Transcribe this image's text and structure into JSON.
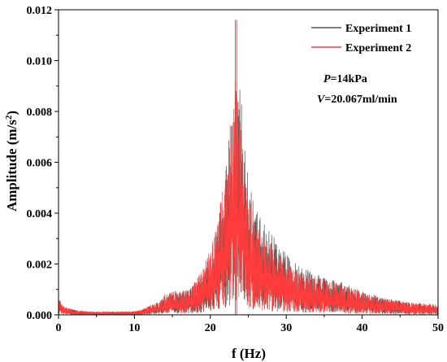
{
  "chart_data": {
    "type": "line",
    "xlabel": "f (Hz)",
    "ylabel": "Amplitude (m/s",
    "ylabel_sup": "2",
    "ylabel_end": ")",
    "xlim": [
      0,
      50
    ],
    "ylim": [
      0,
      0.012
    ],
    "x_ticks": [
      0,
      10,
      20,
      30,
      40,
      50
    ],
    "x_tick_labels": [
      "0",
      "10",
      "20",
      "30",
      "40",
      "50"
    ],
    "y_ticks": [
      0,
      0.002,
      0.004,
      0.006,
      0.008,
      0.01,
      0.012
    ],
    "y_tick_labels": [
      "0.000",
      "0.002",
      "0.004",
      "0.006",
      "0.008",
      "0.010",
      "0.012"
    ],
    "grid": false,
    "legend_position": "top-right",
    "annotations": [
      {
        "var": "P",
        "rest": "=14kPa"
      },
      {
        "var": "V",
        "rest": "=20.067ml/min"
      }
    ],
    "envelope_x": [
      0,
      0.5,
      1,
      2,
      4,
      6,
      8,
      10,
      11,
      12,
      13,
      14,
      15,
      16,
      17,
      18,
      19,
      20,
      21,
      22,
      22.5,
      23,
      23.3,
      23.6,
      24,
      24.5,
      25,
      26,
      27,
      28,
      29,
      30,
      32,
      34,
      36,
      38,
      40,
      42,
      44,
      46,
      48,
      50
    ],
    "series": [
      {
        "name": "Experiment 1",
        "color": "#555555",
        "envelope": [
          0.0007,
          0.0004,
          0.0003,
          0.0002,
          0.00013,
          0.00012,
          0.00012,
          0.00013,
          0.0002,
          0.00035,
          0.0005,
          0.0007,
          0.0009,
          0.00095,
          0.001,
          0.0013,
          0.0018,
          0.0025,
          0.0036,
          0.0055,
          0.0072,
          0.0094,
          0.0112,
          0.0104,
          0.0088,
          0.007,
          0.0055,
          0.0042,
          0.0036,
          0.0032,
          0.0028,
          0.0024,
          0.0019,
          0.0016,
          0.0014,
          0.0012,
          0.0009,
          0.00075,
          0.0006,
          0.0005,
          0.00045,
          0.0004
        ],
        "peak": {
          "x": 23.3,
          "y": 0.0116
        }
      },
      {
        "name": "Experiment 2",
        "color": "#ff3b3b",
        "envelope": [
          0.0006,
          0.0004,
          0.0003,
          0.0002,
          0.00012,
          0.00012,
          0.00012,
          0.00013,
          0.0002,
          0.00035,
          0.0005,
          0.0008,
          0.001,
          0.0009,
          0.001,
          0.0013,
          0.0018,
          0.0026,
          0.0038,
          0.0058,
          0.0072,
          0.0085,
          0.0093,
          0.0087,
          0.0076,
          0.006,
          0.0048,
          0.0037,
          0.0031,
          0.0028,
          0.0024,
          0.0021,
          0.0017,
          0.0015,
          0.0013,
          0.0011,
          0.0009,
          0.0007,
          0.0006,
          0.0005,
          0.00045,
          0.0004
        ],
        "peak": {
          "x": 23.5,
          "y": 0.0116
        }
      }
    ]
  }
}
